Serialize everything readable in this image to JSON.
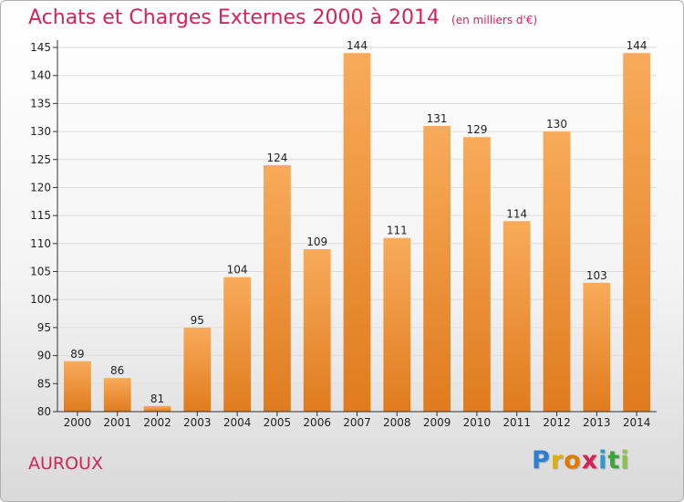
{
  "header": {
    "title": "Achats et Charges Externes 2000 à 2014",
    "subtitle": "(en milliers d'€)"
  },
  "footer": {
    "commune": "AUROUX",
    "logo": {
      "letters": [
        "P",
        "r",
        "o",
        "x",
        "i",
        "t",
        "i"
      ],
      "colors": [
        "#2a7fd0",
        "#e0b000",
        "#e07a00",
        "#d2235a",
        "#2a9ad0",
        "#3aa63a",
        "#8bc34a"
      ]
    }
  },
  "colors": {
    "bar_top": "#f8ab5a",
    "bar_bottom": "#e07b1e",
    "grid": "#dddddd",
    "axis": "#333333"
  },
  "chart_data": {
    "type": "bar",
    "title": "Achats et Charges Externes 2000 à 2014",
    "subtitle": "(en milliers d'€)",
    "xlabel": "",
    "ylabel": "",
    "categories": [
      "2000",
      "2001",
      "2002",
      "2003",
      "2004",
      "2005",
      "2006",
      "2007",
      "2008",
      "2009",
      "2010",
      "2011",
      "2012",
      "2013",
      "2014"
    ],
    "values": [
      89,
      86,
      81,
      95,
      104,
      124,
      109,
      144,
      111,
      131,
      129,
      114,
      130,
      103,
      144
    ],
    "ylim": [
      80,
      145
    ],
    "yticks": [
      "80",
      "85",
      "90",
      "95",
      "100",
      "105",
      "110",
      "115",
      "120",
      "125",
      "130",
      "135",
      "140",
      "145"
    ],
    "grid": true,
    "legend": "none"
  }
}
